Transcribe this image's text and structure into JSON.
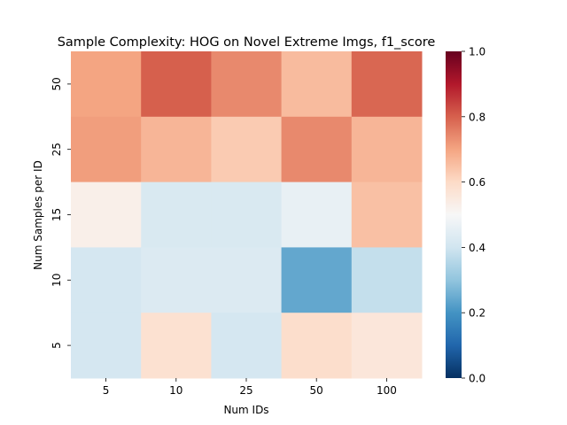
{
  "chart_data": {
    "type": "heatmap",
    "title": "Sample Complexity: HOG on Novel Extreme Imgs, f1_score",
    "xlabel": "Num IDs",
    "ylabel": "Num Samples per ID",
    "x_categories": [
      "5",
      "10",
      "25",
      "50",
      "100"
    ],
    "y_categories": [
      "50",
      "25",
      "15",
      "10",
      "5"
    ],
    "values": [
      [
        0.7,
        0.8,
        0.74,
        0.66,
        0.79
      ],
      [
        0.71,
        0.67,
        0.63,
        0.74,
        0.67
      ],
      [
        0.53,
        0.42,
        0.42,
        0.46,
        0.65
      ],
      [
        0.41,
        0.43,
        0.43,
        0.24,
        0.38
      ],
      [
        0.41,
        0.58,
        0.41,
        0.59,
        0.56
      ]
    ],
    "colormap": "RdBu_r",
    "vmin": 0.0,
    "vmax": 1.0,
    "colorbar_ticks": [
      "0.0",
      "0.2",
      "0.4",
      "0.6",
      "0.8",
      "1.0"
    ]
  }
}
